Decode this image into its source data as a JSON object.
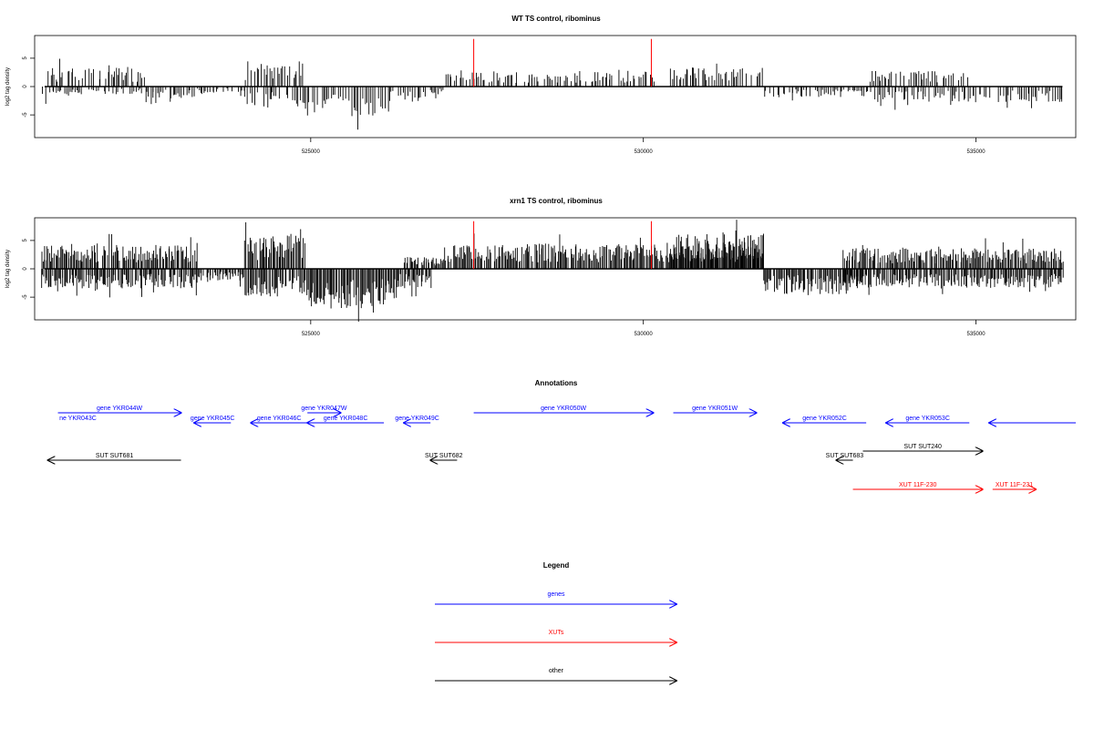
{
  "chart_data": [
    {
      "type": "bar",
      "title": "WT TS control, ribominus",
      "ylabel": "log2 tag density",
      "xlim": [
        520850,
        536500
      ],
      "ylim": [
        -9,
        9
      ],
      "x_ticks": [
        525000,
        530000,
        535000
      ],
      "y_ticks": [
        -5,
        0,
        5
      ],
      "markers_x": [
        527450,
        530120
      ],
      "marker_top": 8.4,
      "segments": [
        {
          "start": 520950,
          "end": 521050,
          "sign": -1,
          "amp": 3.5
        },
        {
          "start": 521050,
          "end": 522500,
          "sign": 1,
          "amp": 2.4
        },
        {
          "start": 521050,
          "end": 522500,
          "sign": -1,
          "amp": 1.0
        },
        {
          "start": 522500,
          "end": 523250,
          "sign": -1,
          "amp": 1.5
        },
        {
          "start": 523250,
          "end": 524000,
          "sign": -1,
          "amp": 0.8
        },
        {
          "start": 524000,
          "end": 524900,
          "sign": 1,
          "amp": 3.2
        },
        {
          "start": 524000,
          "end": 524900,
          "sign": -1,
          "amp": 2.5
        },
        {
          "start": 524900,
          "end": 526200,
          "sign": -1,
          "amp": 3.8
        },
        {
          "start": 526200,
          "end": 526800,
          "sign": -1,
          "amp": 2.2
        },
        {
          "start": 526800,
          "end": 527000,
          "sign": -1,
          "amp": 1.0
        },
        {
          "start": 527000,
          "end": 529000,
          "sign": 1,
          "amp": 1.8
        },
        {
          "start": 529000,
          "end": 530200,
          "sign": 1,
          "amp": 2.0
        },
        {
          "start": 530400,
          "end": 531800,
          "sign": 1,
          "amp": 2.4
        },
        {
          "start": 531800,
          "end": 533400,
          "sign": -1,
          "amp": 1.4
        },
        {
          "start": 533400,
          "end": 534900,
          "sign": 1,
          "amp": 2.0
        },
        {
          "start": 533400,
          "end": 536300,
          "sign": -1,
          "amp": 2.0
        }
      ]
    },
    {
      "type": "bar",
      "title": "xrn1 TS control, ribominus",
      "ylabel": "log2 tag density",
      "xlim": [
        520850,
        536500
      ],
      "ylim": [
        -9,
        9
      ],
      "x_ticks": [
        525000,
        530000,
        535000
      ],
      "y_ticks": [
        -5,
        0,
        5
      ],
      "markers_x": [
        527450,
        530120
      ],
      "marker_top": 8.4,
      "segments": [
        {
          "start": 520950,
          "end": 523300,
          "sign": 1,
          "amp": 3.0
        },
        {
          "start": 520950,
          "end": 523300,
          "sign": -1,
          "amp": 2.5
        },
        {
          "start": 523300,
          "end": 524000,
          "sign": -1,
          "amp": 1.5
        },
        {
          "start": 524000,
          "end": 524900,
          "sign": 1,
          "amp": 4.2
        },
        {
          "start": 524000,
          "end": 524900,
          "sign": -1,
          "amp": 3.5
        },
        {
          "start": 524900,
          "end": 526300,
          "sign": -1,
          "amp": 5.0
        },
        {
          "start": 526300,
          "end": 526800,
          "sign": -1,
          "amp": 2.5
        },
        {
          "start": 526400,
          "end": 527000,
          "sign": 1,
          "amp": 1.5
        },
        {
          "start": 527000,
          "end": 531800,
          "sign": 1,
          "amp": 3.2
        },
        {
          "start": 530400,
          "end": 531800,
          "sign": 1,
          "amp": 4.5
        },
        {
          "start": 531800,
          "end": 533300,
          "sign": -1,
          "amp": 3.2
        },
        {
          "start": 533000,
          "end": 536300,
          "sign": 1,
          "amp": 2.6
        },
        {
          "start": 533000,
          "end": 536300,
          "sign": -1,
          "amp": 2.4
        }
      ]
    }
  ],
  "annotations": {
    "title": "Annotations",
    "xlim": [
      520850,
      536500
    ],
    "features": [
      {
        "label": "ne YKR043C",
        "start": 521500,
        "end": 521500,
        "strand": "-",
        "type": "gene",
        "row": 1
      },
      {
        "label": "gene YKR044W",
        "start": 521200,
        "end": 523050,
        "strand": "+",
        "type": "gene",
        "row": 0
      },
      {
        "label": "gene YKR045C",
        "start": 523250,
        "end": 523800,
        "strand": "-",
        "type": "gene",
        "row": 1
      },
      {
        "label": "gene YKR046C",
        "start": 524100,
        "end": 524950,
        "strand": "-",
        "type": "gene",
        "row": 1
      },
      {
        "label": "gene YKR047W",
        "start": 524950,
        "end": 525450,
        "strand": "+",
        "type": "gene",
        "row": 0
      },
      {
        "label": "gene YKR048C",
        "start": 524950,
        "end": 526100,
        "strand": "-",
        "type": "gene",
        "row": 1
      },
      {
        "label": "gene YKR049C",
        "start": 526400,
        "end": 526800,
        "strand": "-",
        "type": "gene",
        "row": 1
      },
      {
        "label": "gene YKR050W",
        "start": 527450,
        "end": 530150,
        "strand": "+",
        "type": "gene",
        "row": 0
      },
      {
        "label": "gene YKR051W",
        "start": 530450,
        "end": 531700,
        "strand": "+",
        "type": "gene",
        "row": 0
      },
      {
        "label": "gene YKR052C",
        "start": 532100,
        "end": 533350,
        "strand": "-",
        "type": "gene",
        "row": 1
      },
      {
        "label": "gene YKR053C",
        "start": 533650,
        "end": 534900,
        "strand": "-",
        "type": "gene",
        "row": 1
      },
      {
        "label": "",
        "start": 535200,
        "end": 536500,
        "strand": "-",
        "type": "gene",
        "row": 1
      },
      {
        "label": "SUT SUT681",
        "start": 521050,
        "end": 523050,
        "strand": "-",
        "type": "other",
        "row": 2
      },
      {
        "label": "SUT SUT682",
        "start": 526800,
        "end": 527200,
        "strand": "-",
        "type": "other",
        "row": 2
      },
      {
        "label": "SUT SUT683",
        "start": 532900,
        "end": 533150,
        "strand": "-",
        "type": "other",
        "row": 2
      },
      {
        "label": "SUT SUT240",
        "start": 533300,
        "end": 535100,
        "strand": "+",
        "type": "other",
        "row": 3
      },
      {
        "label": "XUT 11F-230",
        "start": 533150,
        "end": 535100,
        "strand": "+",
        "type": "xut",
        "row": 4
      },
      {
        "label": "XUT 11F-231",
        "start": 535250,
        "end": 535900,
        "strand": "+",
        "type": "xut",
        "row": 4
      }
    ]
  },
  "legend": {
    "title": "Legend",
    "items": [
      {
        "label": "genes",
        "type": "gene"
      },
      {
        "label": "XUTs",
        "type": "xut"
      },
      {
        "label": "other",
        "type": "other"
      }
    ]
  },
  "colors": {
    "gene": "#0000ff",
    "xut": "#ff0000",
    "other": "#000000",
    "marker": "#ff0000",
    "bars": "#000000"
  }
}
